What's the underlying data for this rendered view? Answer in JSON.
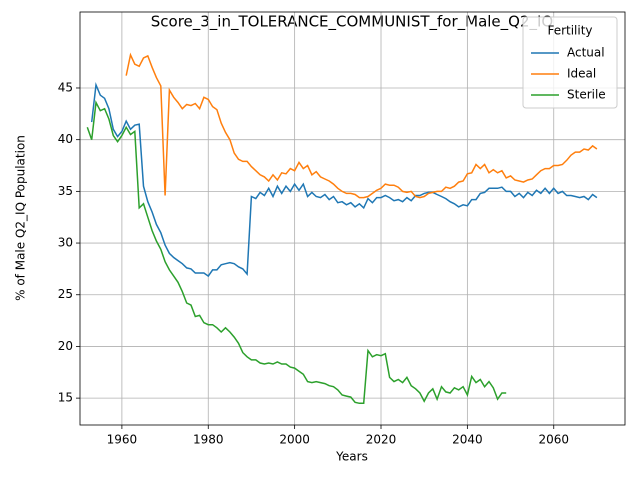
{
  "chart_data": {
    "type": "line",
    "title": "Score_3_in_TOLERANCE_COMMUNIST_for_Male_Q2_IQ",
    "x_label": "Years",
    "y_label": "% of Male Q2_IQ Population",
    "legend_title": "Fertility",
    "legend_loc": "upper right",
    "grid": true,
    "xlim": [
      1950.3,
      2076.5
    ],
    "ylim": [
      12.4,
      52.35
    ],
    "xticks": [
      1960,
      1980,
      2000,
      2020,
      2040,
      2060
    ],
    "yticks": [
      15,
      20,
      25,
      30,
      35,
      40,
      45
    ],
    "x": [
      1952,
      1953,
      1954,
      1955,
      1956,
      1957,
      1958,
      1959,
      1960,
      1961,
      1962,
      1963,
      1964,
      1965,
      1966,
      1967,
      1968,
      1969,
      1970,
      1971,
      1972,
      1973,
      1974,
      1975,
      1976,
      1977,
      1978,
      1979,
      1980,
      1981,
      1982,
      1983,
      1984,
      1985,
      1986,
      1987,
      1988,
      1989,
      1990,
      1991,
      1992,
      1993,
      1994,
      1995,
      1996,
      1997,
      1998,
      1999,
      2000,
      2001,
      2002,
      2003,
      2004,
      2005,
      2006,
      2007,
      2008,
      2009,
      2010,
      2011,
      2012,
      2013,
      2014,
      2015,
      2016,
      2017,
      2018,
      2019,
      2020,
      2021,
      2022,
      2023,
      2024,
      2025,
      2026,
      2027,
      2028,
      2029,
      2030,
      2031,
      2032,
      2033,
      2034,
      2035,
      2036,
      2037,
      2038,
      2039,
      2040,
      2041,
      2042,
      2043,
      2044,
      2045,
      2046,
      2047,
      2048,
      2049,
      2050,
      2051,
      2052,
      2053,
      2054,
      2055,
      2056,
      2057,
      2058,
      2059,
      2060,
      2061,
      2062,
      2063,
      2064,
      2065,
      2066,
      2067,
      2068,
      2069,
      2070
    ],
    "series": [
      {
        "name": "Actual",
        "color": "#1f77b4",
        "values": [
          null,
          41.7,
          45.3,
          44.3,
          44.0,
          43.0,
          41.0,
          40.3,
          40.8,
          41.8,
          41.0,
          41.4,
          41.5,
          35.5,
          34.0,
          33.0,
          31.8,
          31.0,
          29.8,
          29.0,
          28.6,
          28.3,
          28.0,
          27.6,
          27.5,
          27.1,
          27.1,
          27.1,
          26.8,
          27.4,
          27.4,
          27.9,
          28.0,
          28.1,
          28.0,
          27.7,
          27.5,
          27.0,
          34.5,
          34.3,
          34.9,
          34.6,
          35.3,
          34.5,
          35.5,
          34.8,
          35.5,
          35.0,
          35.7,
          35.1,
          35.7,
          34.5,
          34.9,
          34.5,
          34.4,
          34.7,
          34.2,
          34.5,
          33.9,
          34.0,
          33.7,
          33.9,
          33.5,
          33.8,
          33.4,
          34.3,
          33.9,
          34.4,
          34.4,
          34.6,
          34.4,
          34.1,
          34.2,
          34.0,
          34.4,
          34.1,
          34.6,
          34.6,
          34.8,
          34.9,
          34.9,
          34.7,
          34.5,
          34.3,
          34.0,
          33.8,
          33.5,
          33.7,
          33.6,
          34.2,
          34.2,
          34.8,
          34.9,
          35.3,
          35.3,
          35.3,
          35.4,
          35.0,
          35.0,
          34.5,
          34.8,
          34.4,
          34.9,
          34.6,
          35.1,
          34.8,
          35.3,
          34.8,
          35.3,
          34.8,
          35.0,
          34.6,
          34.6,
          34.5,
          34.4,
          34.5,
          34.2,
          34.7,
          34.4
        ]
      },
      {
        "name": "Ideal",
        "color": "#ff7f0e",
        "values": [
          null,
          null,
          null,
          null,
          null,
          null,
          null,
          null,
          null,
          46.2,
          48.2,
          47.3,
          47.1,
          47.9,
          48.1,
          47.0,
          46.0,
          45.2,
          34.6,
          44.8,
          44.1,
          43.6,
          43.0,
          43.4,
          43.3,
          43.5,
          43.0,
          44.1,
          43.9,
          43.2,
          42.9,
          41.6,
          40.7,
          40.0,
          38.7,
          38.1,
          37.9,
          37.9,
          37.4,
          37.0,
          36.6,
          36.4,
          36.0,
          36.6,
          36.1,
          36.8,
          36.7,
          37.2,
          37.0,
          37.8,
          37.2,
          37.5,
          36.6,
          36.9,
          36.4,
          36.2,
          36.0,
          35.7,
          35.3,
          35.0,
          34.8,
          34.8,
          34.7,
          34.4,
          34.4,
          34.5,
          34.8,
          35.1,
          35.3,
          35.7,
          35.6,
          35.6,
          35.4,
          35.0,
          34.9,
          35.0,
          34.5,
          34.4,
          34.5,
          34.8,
          34.9,
          35.0,
          35.0,
          35.4,
          35.3,
          35.5,
          35.9,
          36.0,
          36.7,
          36.8,
          37.6,
          37.2,
          37.6,
          36.8,
          37.1,
          36.8,
          37.0,
          36.3,
          36.5,
          36.1,
          36.0,
          35.9,
          36.1,
          36.2,
          36.6,
          37.0,
          37.2,
          37.2,
          37.5,
          37.5,
          37.6,
          38.0,
          38.5,
          38.8,
          38.8,
          39.1,
          39.0,
          39.4,
          39.1
        ]
      },
      {
        "name": "Sterile",
        "color": "#2ca02c",
        "values": [
          41.2,
          40.0,
          43.6,
          42.8,
          43.0,
          42.0,
          40.4,
          39.8,
          40.4,
          41.2,
          40.5,
          40.8,
          33.4,
          33.8,
          32.5,
          31.2,
          30.2,
          29.4,
          28.2,
          27.4,
          26.8,
          26.2,
          25.3,
          24.2,
          24.0,
          22.9,
          23.0,
          22.3,
          22.1,
          22.1,
          21.8,
          21.4,
          21.8,
          21.4,
          20.9,
          20.3,
          19.4,
          19.0,
          18.7,
          18.7,
          18.4,
          18.3,
          18.4,
          18.3,
          18.5,
          18.3,
          18.3,
          18.0,
          17.9,
          17.6,
          17.3,
          16.6,
          16.5,
          16.6,
          16.5,
          16.4,
          16.2,
          16.1,
          15.8,
          15.3,
          15.2,
          15.1,
          14.6,
          14.5,
          14.5,
          19.6,
          19.0,
          19.2,
          19.1,
          19.3,
          17.0,
          16.6,
          16.8,
          16.5,
          17.0,
          16.2,
          15.9,
          15.5,
          14.7,
          15.5,
          15.9,
          14.9,
          16.1,
          15.6,
          15.5,
          16.0,
          15.8,
          16.1,
          15.3,
          17.1,
          16.5,
          16.8,
          16.1,
          16.6,
          16.0,
          14.9,
          15.5,
          15.5,
          null,
          null,
          null,
          null,
          null,
          null,
          null,
          null,
          null,
          null,
          null,
          null,
          null,
          null,
          null,
          null,
          null,
          null,
          null,
          null,
          null
        ]
      }
    ]
  }
}
